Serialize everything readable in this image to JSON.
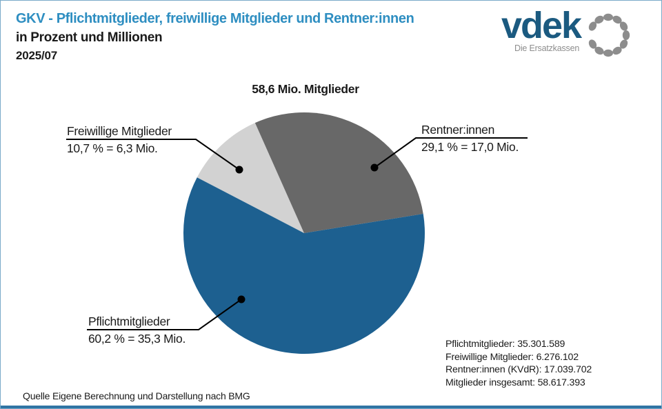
{
  "header": {
    "title_line1": "GKV - Pflichtmitglieder, freiwillige Mitglieder und Rentner:innen",
    "title_line2": "in Prozent und Millionen",
    "title_line3": "2025/07"
  },
  "logo": {
    "wordmark": "vdek",
    "tagline": "Die Ersatzkassen",
    "brand_blue": "#1b5a80",
    "ring_gray": "#8d8d8d"
  },
  "chart_data": {
    "type": "pie",
    "title": "58,6 Mio. Mitglieder",
    "total_label": "58,6 Mio. Mitglieder",
    "start_angle_deg": 152.5,
    "direction": "clockwise",
    "legend_position": "callout-labels",
    "slices": [
      {
        "name": "Freiwillige Mitglieder",
        "percent": 10.7,
        "value_mio": 6.3,
        "label_line1": "Freiwillige Mitglieder",
        "label_line2": "10,7 % = 6,3 Mio.",
        "color": "#d2d2d2"
      },
      {
        "name": "Rentner:innen",
        "percent": 29.1,
        "value_mio": 17.0,
        "label_line1": "Rentner:innen",
        "label_line2": "29,1 % = 17,0 Mio.",
        "color": "#686868"
      },
      {
        "name": "Pflichtmitglieder",
        "percent": 60.2,
        "value_mio": 35.3,
        "label_line1": "Pflichtmitglieder",
        "label_line2": "60,2 % = 35,3 Mio.",
        "color": "#1d6090"
      }
    ]
  },
  "stats": {
    "rows": [
      {
        "label": "Pflichtmitglieder:",
        "value": "35.301.589"
      },
      {
        "label": "Freiwillige Mitglieder:",
        "value": "6.276.102"
      },
      {
        "label": "Rentner:innen (KVdR):",
        "value": "17.039.702"
      },
      {
        "label": "Mitglieder insgesamt:",
        "value": "58.617.393"
      }
    ]
  },
  "source": "Quelle Eigene Berechnung und Darstellung nach BMG"
}
